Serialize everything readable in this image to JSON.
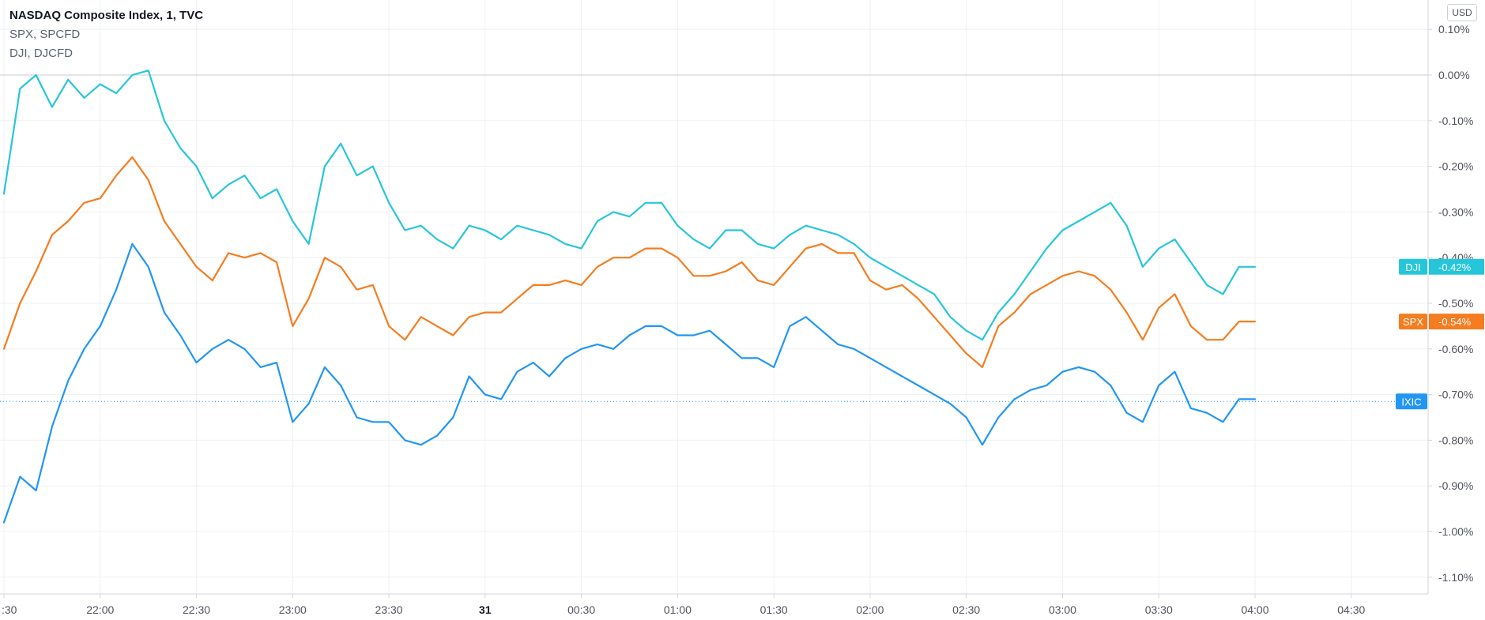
{
  "legend": {
    "main_title": "NASDAQ Composite Index, 1, TVC",
    "line2": "SPX, SPCFD",
    "line3": "DJI, DJCFD"
  },
  "currency": "USD",
  "colors": {
    "ixic": "#2196f3",
    "spx": "#f57c1f",
    "dji": "#26c6da",
    "grid": "#eef0f3",
    "zero_line": "#c8cbd2",
    "axis_border": "#d1d4dc"
  },
  "chart_data": {
    "type": "line",
    "title": "NASDAQ Composite Index, 1, TVC",
    "xlabel": "",
    "ylabel": "",
    "y_unit": "%",
    "ylim": [
      -1.14,
      0.13
    ],
    "x_ticks": [
      {
        "label": ":30",
        "x": "21:30"
      },
      {
        "label": "22:00",
        "x": "22:00"
      },
      {
        "label": "22:30",
        "x": "22:30"
      },
      {
        "label": "23:00",
        "x": "23:00"
      },
      {
        "label": "23:30",
        "x": "23:30"
      },
      {
        "label": "31",
        "x": "00:00",
        "bold": true
      },
      {
        "label": "00:30",
        "x": "00:30"
      },
      {
        "label": "01:00",
        "x": "01:00"
      },
      {
        "label": "01:30",
        "x": "01:30"
      },
      {
        "label": "02:00",
        "x": "02:00"
      },
      {
        "label": "02:30",
        "x": "02:30"
      },
      {
        "label": "03:00",
        "x": "03:00"
      },
      {
        "label": "03:30",
        "x": "03:30"
      },
      {
        "label": "04:00",
        "x": "04:00"
      },
      {
        "label": "04:30",
        "x": "04:30"
      }
    ],
    "y_ticks": [
      "0.10%",
      "0.00%",
      "-0.10%",
      "-0.20%",
      "-0.30%",
      "-0.40%",
      "-0.50%",
      "-0.60%",
      "-0.70%",
      "-0.80%",
      "-0.90%",
      "-1.00%",
      "-1.10%"
    ],
    "y_tick_values": [
      0.1,
      0.0,
      -0.1,
      -0.2,
      -0.3,
      -0.4,
      -0.5,
      -0.6,
      -0.7,
      -0.8,
      -0.9,
      -1.0,
      -1.1
    ],
    "x": [
      "21:30",
      "21:35",
      "21:40",
      "21:45",
      "21:50",
      "21:55",
      "22:00",
      "22:05",
      "22:10",
      "22:15",
      "22:20",
      "22:25",
      "22:30",
      "22:35",
      "22:40",
      "22:45",
      "22:50",
      "22:55",
      "23:00",
      "23:05",
      "23:10",
      "23:15",
      "23:20",
      "23:25",
      "23:30",
      "23:35",
      "23:40",
      "23:45",
      "23:50",
      "23:55",
      "00:00",
      "00:05",
      "00:10",
      "00:15",
      "00:20",
      "00:25",
      "00:30",
      "00:35",
      "00:40",
      "00:45",
      "00:50",
      "00:55",
      "01:00",
      "01:05",
      "01:10",
      "01:15",
      "01:20",
      "01:25",
      "01:30",
      "01:35",
      "01:40",
      "01:45",
      "01:50",
      "01:55",
      "02:00",
      "02:05",
      "02:10",
      "02:15",
      "02:20",
      "02:25",
      "02:30",
      "02:35",
      "02:40",
      "02:45",
      "02:50",
      "02:55",
      "03:00",
      "03:05",
      "03:10",
      "03:15",
      "03:20",
      "03:25",
      "03:30",
      "03:35",
      "03:40",
      "03:45",
      "03:50",
      "03:55",
      "04:00"
    ],
    "series": [
      {
        "name": "DJI",
        "color": "#26c6da",
        "last_label": "-0.42%",
        "values": [
          -0.26,
          -0.03,
          0.0,
          -0.07,
          -0.01,
          -0.05,
          -0.02,
          -0.04,
          0.0,
          0.01,
          -0.1,
          -0.16,
          -0.2,
          -0.27,
          -0.24,
          -0.22,
          -0.27,
          -0.25,
          -0.32,
          -0.37,
          -0.2,
          -0.15,
          -0.22,
          -0.2,
          -0.28,
          -0.34,
          -0.33,
          -0.36,
          -0.38,
          -0.33,
          -0.34,
          -0.36,
          -0.33,
          -0.34,
          -0.35,
          -0.37,
          -0.38,
          -0.32,
          -0.3,
          -0.31,
          -0.28,
          -0.28,
          -0.33,
          -0.36,
          -0.38,
          -0.34,
          -0.34,
          -0.37,
          -0.38,
          -0.35,
          -0.33,
          -0.34,
          -0.35,
          -0.37,
          -0.4,
          -0.42,
          -0.44,
          -0.46,
          -0.48,
          -0.53,
          -0.56,
          -0.58,
          -0.52,
          -0.48,
          -0.43,
          -0.38,
          -0.34,
          -0.32,
          -0.3,
          -0.28,
          -0.33,
          -0.42,
          -0.38,
          -0.36,
          -0.41,
          -0.46,
          -0.48,
          -0.42,
          -0.42
        ]
      },
      {
        "name": "SPX",
        "color": "#f57c1f",
        "last_label": "-0.54%",
        "values": [
          -0.6,
          -0.5,
          -0.43,
          -0.35,
          -0.32,
          -0.28,
          -0.27,
          -0.22,
          -0.18,
          -0.23,
          -0.32,
          -0.37,
          -0.42,
          -0.45,
          -0.39,
          -0.4,
          -0.39,
          -0.41,
          -0.55,
          -0.49,
          -0.4,
          -0.42,
          -0.47,
          -0.46,
          -0.55,
          -0.58,
          -0.53,
          -0.55,
          -0.57,
          -0.53,
          -0.52,
          -0.52,
          -0.49,
          -0.46,
          -0.46,
          -0.45,
          -0.46,
          -0.42,
          -0.4,
          -0.4,
          -0.38,
          -0.38,
          -0.4,
          -0.44,
          -0.44,
          -0.43,
          -0.41,
          -0.45,
          -0.46,
          -0.42,
          -0.38,
          -0.37,
          -0.39,
          -0.39,
          -0.45,
          -0.47,
          -0.46,
          -0.49,
          -0.53,
          -0.57,
          -0.61,
          -0.64,
          -0.55,
          -0.52,
          -0.48,
          -0.46,
          -0.44,
          -0.43,
          -0.44,
          -0.47,
          -0.52,
          -0.58,
          -0.51,
          -0.48,
          -0.55,
          -0.58,
          -0.58,
          -0.54,
          -0.54
        ]
      },
      {
        "name": "IXIC",
        "color": "#2196f3",
        "last_label": "",
        "values": [
          -0.98,
          -0.88,
          -0.91,
          -0.77,
          -0.67,
          -0.6,
          -0.55,
          -0.47,
          -0.37,
          -0.42,
          -0.52,
          -0.57,
          -0.63,
          -0.6,
          -0.58,
          -0.6,
          -0.64,
          -0.63,
          -0.76,
          -0.72,
          -0.64,
          -0.68,
          -0.75,
          -0.76,
          -0.76,
          -0.8,
          -0.81,
          -0.79,
          -0.75,
          -0.66,
          -0.7,
          -0.71,
          -0.65,
          -0.63,
          -0.66,
          -0.62,
          -0.6,
          -0.59,
          -0.6,
          -0.57,
          -0.55,
          -0.55,
          -0.57,
          -0.57,
          -0.56,
          -0.59,
          -0.62,
          -0.62,
          -0.64,
          -0.55,
          -0.53,
          -0.56,
          -0.59,
          -0.6,
          -0.62,
          -0.64,
          -0.66,
          -0.68,
          -0.7,
          -0.72,
          -0.75,
          -0.81,
          -0.75,
          -0.71,
          -0.69,
          -0.68,
          -0.65,
          -0.64,
          -0.65,
          -0.68,
          -0.74,
          -0.76,
          -0.68,
          -0.65,
          -0.73,
          -0.74,
          -0.76,
          -0.71,
          -0.71
        ]
      }
    ],
    "tags": [
      {
        "series": "DJI",
        "label": "DJI",
        "value_text": "-0.42%",
        "color": "#26c6da",
        "y": -0.42
      },
      {
        "series": "SPX",
        "label": "SPX",
        "value_text": "-0.54%",
        "color": "#f57c1f",
        "y": -0.54
      },
      {
        "series": "IXIC",
        "label": "IXIC",
        "value_text": "",
        "color": "#2196f3",
        "y": -0.715
      }
    ],
    "grid": true,
    "legend": "top-left"
  }
}
